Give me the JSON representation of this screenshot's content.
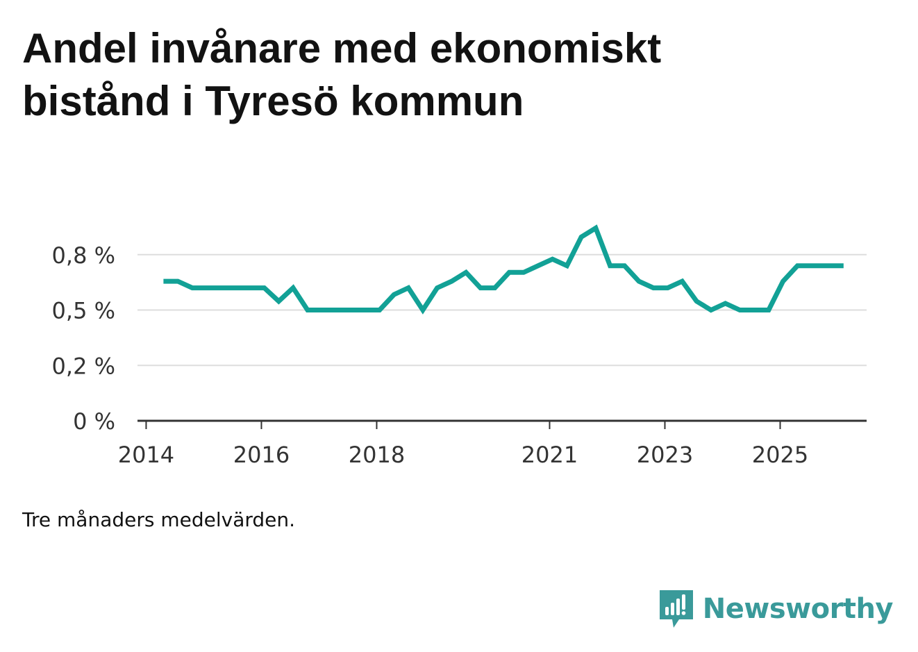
{
  "title": "Andel invånare med ekonomiskt bistånd i Tyresö kommun",
  "note": "Tre månaders medelvärden.",
  "brand": {
    "name": "Newsworthy",
    "icon": "newsworthy-logo-icon",
    "color": "#3a9a9a"
  },
  "chart_data": {
    "type": "line",
    "title": "Andel invånare med ekonomiskt bistånd i Tyresö kommun",
    "xlabel": "",
    "ylabel": "",
    "ylim": [
      0,
      0.95
    ],
    "yticks": [
      0,
      0.25,
      0.5,
      0.75
    ],
    "ytick_labels": [
      "0 %",
      "0,2 %",
      "0,5 %",
      "0,8 %"
    ],
    "xlim": [
      2013.85,
      2026.5
    ],
    "xticks": [
      2014,
      2016,
      2018,
      2021,
      2023,
      2025
    ],
    "xtick_labels": [
      "2014",
      "2016",
      "2018",
      "2021",
      "2023",
      "2025"
    ],
    "grid": true,
    "series": [
      {
        "name": "Andel invånare med ekonomiskt bistånd",
        "color": "#12a196",
        "x": [
          2014.3,
          2014.55,
          2014.8,
          2015.05,
          2015.3,
          2015.55,
          2015.8,
          2016.05,
          2016.3,
          2016.55,
          2016.8,
          2017.05,
          2017.3,
          2017.55,
          2017.8,
          2018.05,
          2018.3,
          2018.55,
          2018.8,
          2019.05,
          2019.3,
          2019.55,
          2019.8,
          2020.05,
          2020.3,
          2020.55,
          2020.8,
          2021.05,
          2021.3,
          2021.55,
          2021.8,
          2022.05,
          2022.3,
          2022.55,
          2022.8,
          2023.05,
          2023.3,
          2023.55,
          2023.8,
          2024.05,
          2024.3,
          2024.55,
          2024.8,
          2025.05,
          2025.3,
          2025.55,
          2025.8,
          2026.1
        ],
        "values": [
          0.63,
          0.63,
          0.6,
          0.6,
          0.6,
          0.6,
          0.6,
          0.6,
          0.54,
          0.6,
          0.5,
          0.5,
          0.5,
          0.5,
          0.5,
          0.5,
          0.57,
          0.6,
          0.5,
          0.6,
          0.63,
          0.67,
          0.6,
          0.6,
          0.67,
          0.67,
          0.7,
          0.73,
          0.7,
          0.83,
          0.87,
          0.7,
          0.7,
          0.63,
          0.6,
          0.6,
          0.63,
          0.54,
          0.5,
          0.53,
          0.5,
          0.5,
          0.5,
          0.63,
          0.7,
          0.7,
          0.7,
          0.7
        ]
      }
    ]
  }
}
